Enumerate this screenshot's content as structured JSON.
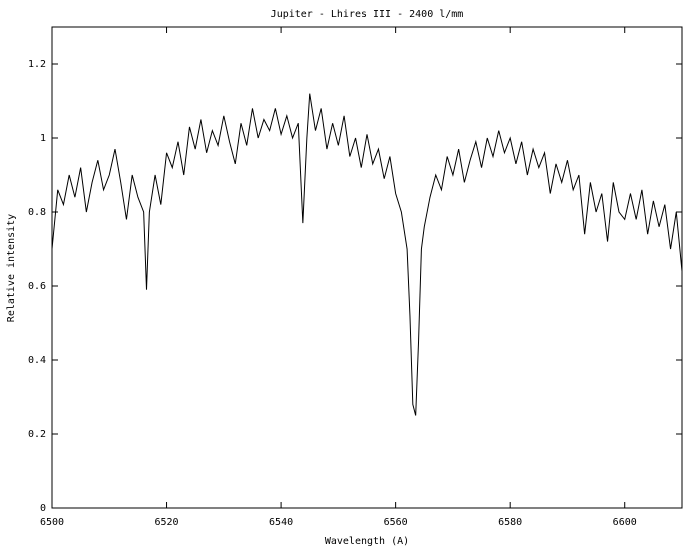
{
  "chart_data": {
    "type": "line",
    "title": "Jupiter - Lhires III - 2400 l/mm",
    "xlabel": "Wavelength (A)",
    "ylabel": "Relative intensity",
    "color": "#000000",
    "xlim": [
      6500,
      6610
    ],
    "xticks": [
      6500,
      6520,
      6540,
      6560,
      6580,
      6600
    ],
    "ylim": [
      0,
      1.3
    ],
    "yticks": [
      0,
      0.2,
      0.4,
      0.6,
      0.8,
      1,
      1.2
    ],
    "x": [
      6500,
      6501,
      6502,
      6503,
      6504,
      6505,
      6506,
      6507,
      6508,
      6509,
      6510,
      6511,
      6512,
      6513,
      6514,
      6515,
      6516,
      6516.5,
      6517,
      6518,
      6519,
      6520,
      6521,
      6522,
      6523,
      6524,
      6525,
      6526,
      6527,
      6528,
      6529,
      6530,
      6531,
      6532,
      6533,
      6534,
      6535,
      6536,
      6537,
      6538,
      6539,
      6540,
      6541,
      6542,
      6543,
      6543.8,
      6544.5,
      6545,
      6546,
      6547,
      6548,
      6549,
      6550,
      6551,
      6552,
      6553,
      6554,
      6555,
      6556,
      6557,
      6558,
      6559,
      6560,
      6561,
      6562,
      6562.5,
      6563,
      6563.5,
      6564,
      6564.5,
      6565,
      6566,
      6567,
      6568,
      6569,
      6570,
      6571,
      6572,
      6573,
      6574,
      6575,
      6576,
      6577,
      6578,
      6579,
      6580,
      6581,
      6582,
      6583,
      6584,
      6585,
      6586,
      6587,
      6588,
      6589,
      6590,
      6591,
      6592,
      6593,
      6594,
      6595,
      6596,
      6597,
      6598,
      6599,
      6600,
      6601,
      6602,
      6603,
      6604,
      6605,
      6606,
      6607,
      6608,
      6609,
      6610
    ],
    "values": [
      0.7,
      0.86,
      0.82,
      0.9,
      0.84,
      0.92,
      0.8,
      0.88,
      0.94,
      0.86,
      0.9,
      0.97,
      0.88,
      0.78,
      0.9,
      0.84,
      0.8,
      0.59,
      0.8,
      0.9,
      0.82,
      0.96,
      0.92,
      0.99,
      0.9,
      1.03,
      0.97,
      1.05,
      0.96,
      1.02,
      0.98,
      1.06,
      0.99,
      0.93,
      1.04,
      0.98,
      1.08,
      1.0,
      1.05,
      1.02,
      1.08,
      1.01,
      1.06,
      1.0,
      1.04,
      0.77,
      1.0,
      1.12,
      1.02,
      1.08,
      0.97,
      1.04,
      0.98,
      1.06,
      0.95,
      1.0,
      0.92,
      1.01,
      0.93,
      0.97,
      0.89,
      0.95,
      0.85,
      0.8,
      0.7,
      0.52,
      0.28,
      0.25,
      0.45,
      0.7,
      0.76,
      0.84,
      0.9,
      0.86,
      0.95,
      0.9,
      0.97,
      0.88,
      0.94,
      0.99,
      0.92,
      1.0,
      0.95,
      1.02,
      0.96,
      1.0,
      0.93,
      0.99,
      0.9,
      0.97,
      0.92,
      0.96,
      0.85,
      0.93,
      0.88,
      0.94,
      0.86,
      0.9,
      0.74,
      0.88,
      0.8,
      0.85,
      0.72,
      0.88,
      0.8,
      0.78,
      0.85,
      0.78,
      0.86,
      0.74,
      0.83,
      0.76,
      0.82,
      0.7,
      0.8,
      0.64
    ]
  }
}
